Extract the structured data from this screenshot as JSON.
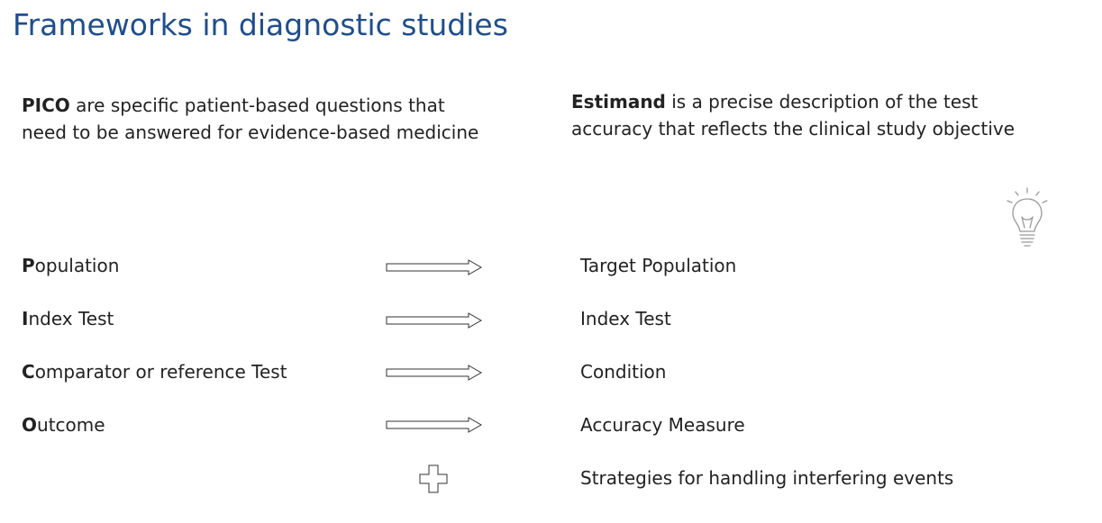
{
  "title": "Frameworks in diagnostic studies",
  "pico_intro": {
    "term": "PICO",
    "text": " are specific patient-based questions that need to be answered for evidence-based medicine"
  },
  "estimand_intro": {
    "term": "Estimand",
    "text": " is a precise description of the test accuracy that reflects the clinical study objective"
  },
  "rows": [
    {
      "initial": "P",
      "rest": "opulation",
      "right": "Target Population"
    },
    {
      "initial": "I",
      "rest": "ndex Test",
      "right": "Index Test"
    },
    {
      "initial": "C",
      "rest": "omparator or reference Test",
      "right": "Condition"
    },
    {
      "initial": "O",
      "rest": "utcome",
      "right": "Accuracy Measure"
    }
  ],
  "extra_row": {
    "right": "Strategies for handling interfering events"
  },
  "icons": {
    "arrow": "right-arrow-icon",
    "plus": "plus-icon",
    "bulb": "lightbulb-icon"
  },
  "colors": {
    "title": "#1f4e8c"
  }
}
